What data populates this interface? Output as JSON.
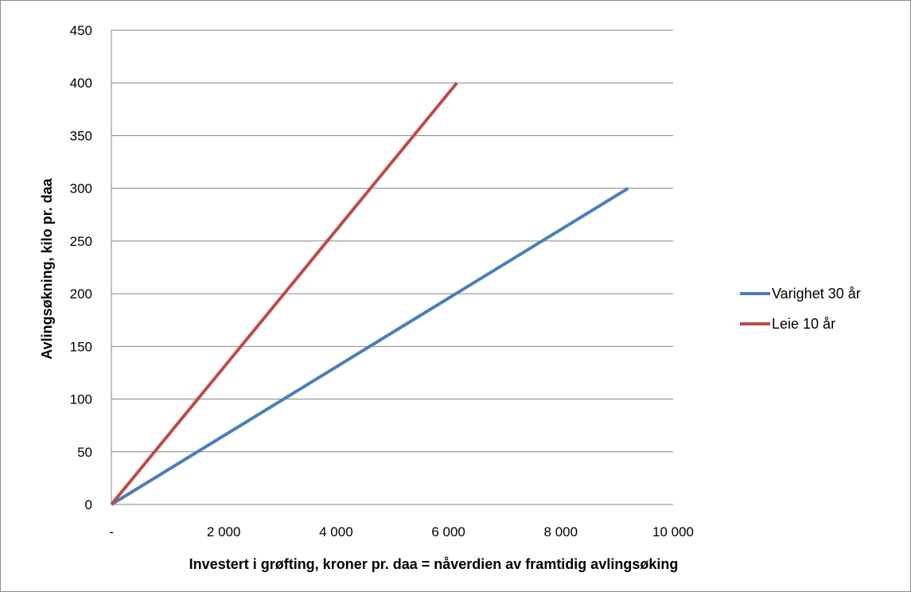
{
  "chart_data": {
    "type": "line",
    "title": "",
    "xlabel": "Investert i grøfting, kroner pr. daa = nåverdien av framtidig avlingsøking",
    "ylabel": "Avlingsøkning, kilo pr. daa",
    "xlim": [
      0,
      10000
    ],
    "ylim": [
      0,
      450
    ],
    "x_ticks": [
      {
        "value": 0,
        "label": "-"
      },
      {
        "value": 2000,
        "label": "2 000"
      },
      {
        "value": 4000,
        "label": "4 000"
      },
      {
        "value": 6000,
        "label": "6 000"
      },
      {
        "value": 8000,
        "label": "8 000"
      },
      {
        "value": 10000,
        "label": "10 000"
      }
    ],
    "y_ticks": [
      {
        "value": 0,
        "label": "0"
      },
      {
        "value": 50,
        "label": "50"
      },
      {
        "value": 100,
        "label": "100"
      },
      {
        "value": 150,
        "label": "150"
      },
      {
        "value": 200,
        "label": "200"
      },
      {
        "value": 250,
        "label": "250"
      },
      {
        "value": 300,
        "label": "300"
      },
      {
        "value": 350,
        "label": "350"
      },
      {
        "value": 400,
        "label": "400"
      },
      {
        "value": 450,
        "label": "450"
      }
    ],
    "grid": "horizontal",
    "legend_position": "right",
    "series": [
      {
        "name": "Varighet 30 år",
        "color": "#4a7ebb",
        "points": [
          [
            0,
            0
          ],
          [
            9200,
            300
          ]
        ]
      },
      {
        "name": "Leie 10 år",
        "color": "#be4b48",
        "points": [
          [
            0,
            0
          ],
          [
            6150,
            400
          ]
        ]
      }
    ]
  }
}
